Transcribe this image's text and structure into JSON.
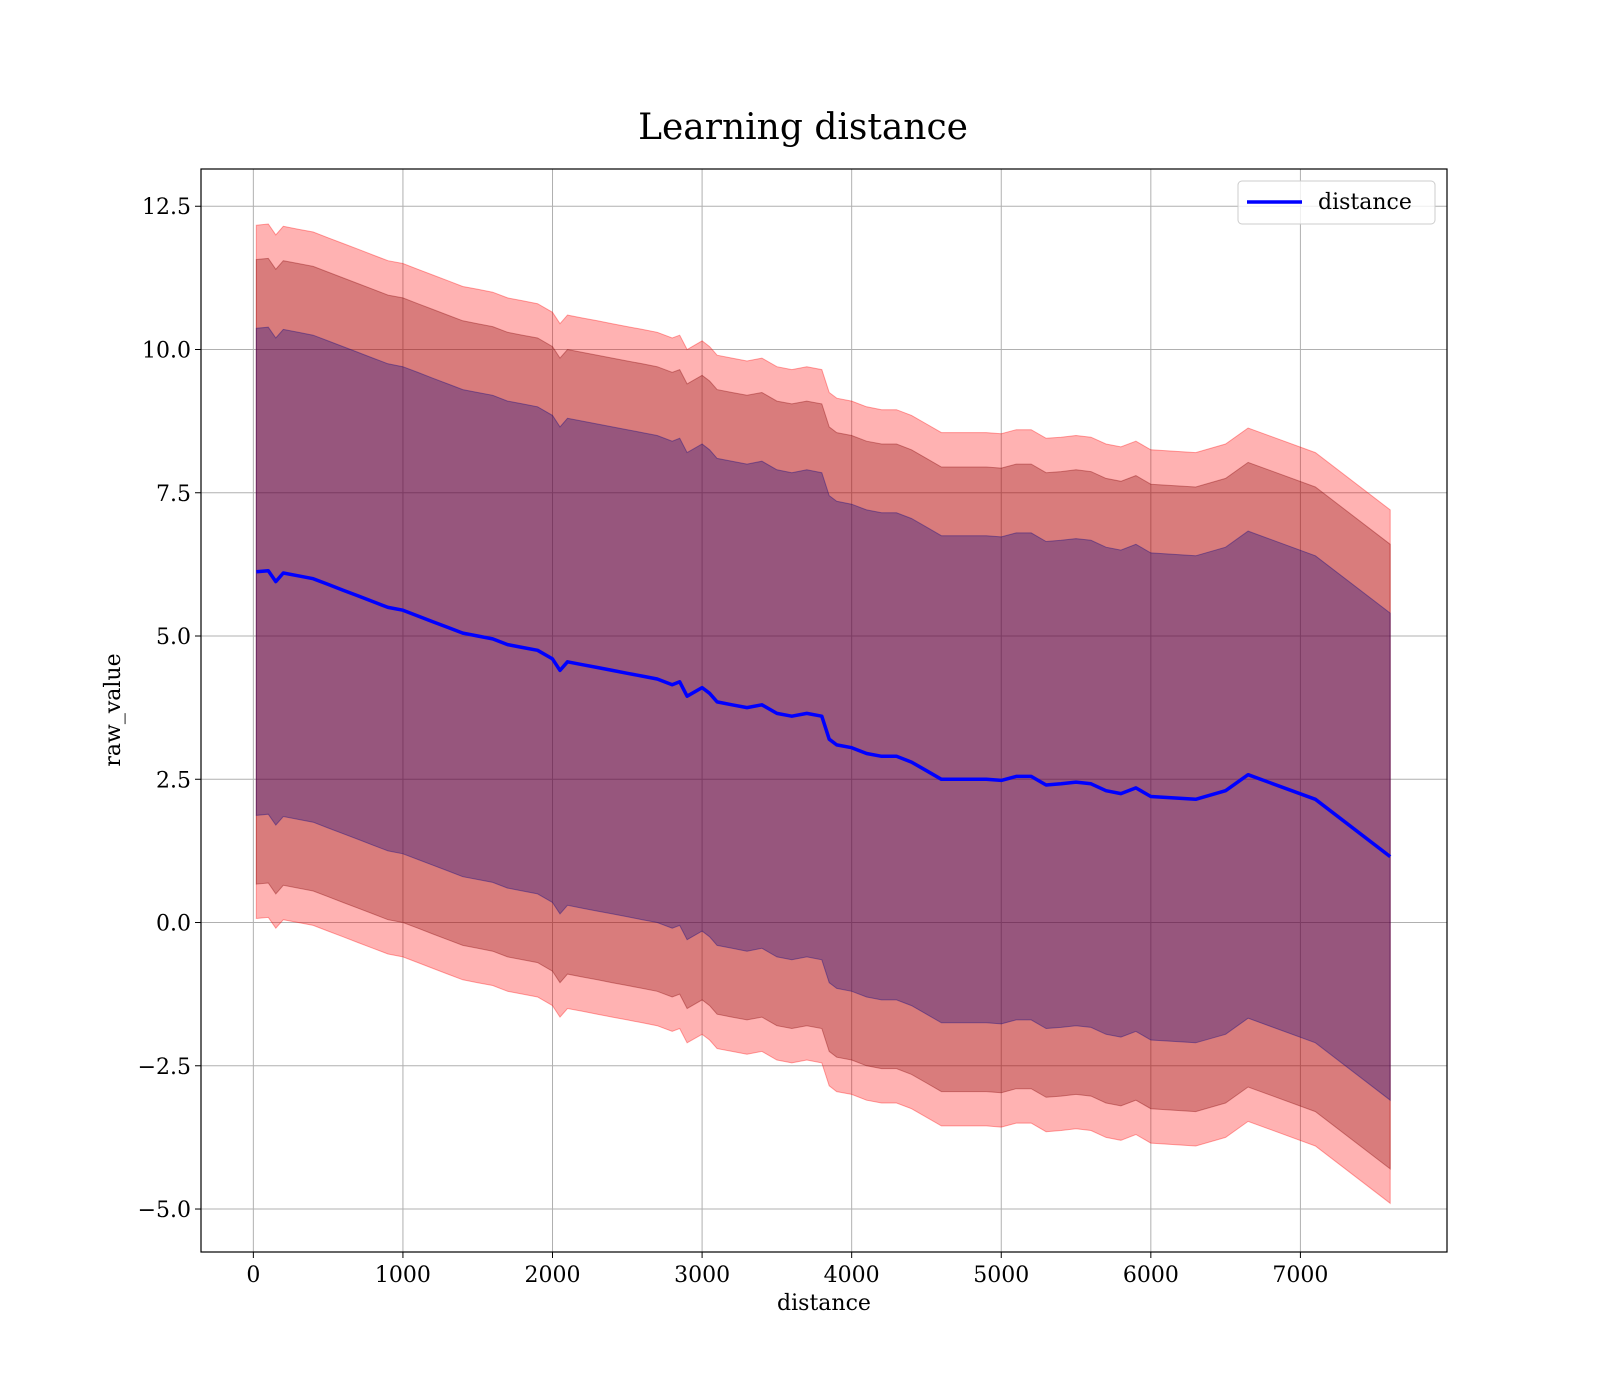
{
  "chart_data": {
    "type": "line",
    "title": "Learning distance",
    "xlabel": "distance",
    "ylabel": "raw_value",
    "xlim": [
      -350,
      7980
    ],
    "ylim": [
      -5.75,
      13.15
    ],
    "xticks": [
      0,
      1000,
      2000,
      3000,
      4000,
      5000,
      6000,
      7000
    ],
    "yticks": [
      -5.0,
      -2.5,
      0.0,
      2.5,
      5.0,
      7.5,
      10.0,
      12.5
    ],
    "xtick_labels": [
      "0",
      "1000",
      "2000",
      "3000",
      "4000",
      "5000",
      "6000",
      "7000"
    ],
    "ytick_labels": [
      "−5.0",
      "−2.5",
      "0.0",
      "2.5",
      "5.0",
      "7.5",
      "10.0",
      "12.5"
    ],
    "grid": true,
    "legend_position": "top-right",
    "series": [
      {
        "name": "distance",
        "color": "#0000ff",
        "x": [
          20,
          100,
          150,
          200,
          300,
          400,
          500,
          600,
          700,
          800,
          900,
          1000,
          1100,
          1200,
          1300,
          1400,
          1500,
          1600,
          1700,
          1800,
          1900,
          2000,
          2050,
          2100,
          2200,
          2300,
          2400,
          2500,
          2600,
          2700,
          2800,
          2850,
          2900,
          3000,
          3050,
          3100,
          3200,
          3300,
          3400,
          3500,
          3600,
          3700,
          3800,
          3850,
          3900,
          4000,
          4100,
          4200,
          4300,
          4400,
          4500,
          4600,
          4700,
          4800,
          4900,
          5000,
          5100,
          5200,
          5300,
          5400,
          5500,
          5600,
          5700,
          5800,
          5900,
          6000,
          6300,
          6500,
          6650,
          7100,
          7600
        ],
        "values": [
          6.12,
          6.14,
          5.95,
          6.1,
          6.05,
          6.0,
          5.9,
          5.8,
          5.7,
          5.6,
          5.5,
          5.45,
          5.35,
          5.25,
          5.15,
          5.05,
          5.0,
          4.95,
          4.85,
          4.8,
          4.75,
          4.6,
          4.4,
          4.55,
          4.5,
          4.45,
          4.4,
          4.35,
          4.3,
          4.25,
          4.15,
          4.2,
          3.95,
          4.1,
          4.0,
          3.85,
          3.8,
          3.75,
          3.8,
          3.65,
          3.6,
          3.65,
          3.6,
          3.2,
          3.1,
          3.05,
          2.95,
          2.9,
          2.9,
          2.8,
          2.65,
          2.5,
          2.5,
          2.5,
          2.5,
          2.48,
          2.55,
          2.55,
          2.4,
          2.42,
          2.45,
          2.42,
          2.3,
          2.25,
          2.35,
          2.2,
          2.15,
          2.3,
          2.58,
          2.15,
          1.15
        ]
      }
    ],
    "bands": [
      {
        "color": "#ff0000",
        "opacity": 0.3,
        "offset": 6.05
      },
      {
        "color": "#800000",
        "opacity": 0.3,
        "offset": 5.45
      },
      {
        "color": "#000080",
        "opacity": 0.3,
        "offset": 4.25
      }
    ]
  }
}
